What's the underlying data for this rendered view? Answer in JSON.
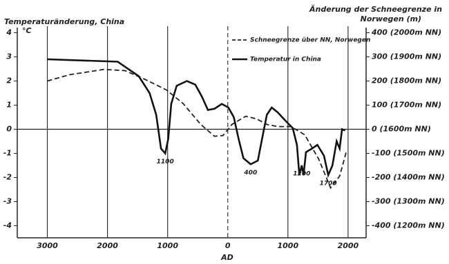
{
  "chart_data": {
    "type": "line",
    "title": "Temperaturänderung, China",
    "y_unit": "°C",
    "y2label": [
      "Änderung der Schneegrenze in",
      "Norwegen (m)"
    ],
    "xlabel": "AD",
    "xlim": [
      -3500,
      2300
    ],
    "xticks": [
      {
        "value": -3000,
        "label": "3000"
      },
      {
        "value": -2000,
        "label": "2000"
      },
      {
        "value": -1000,
        "label": "1000"
      },
      0,
      1000,
      2000
    ],
    "ylim": [
      -4.5,
      4.5
    ],
    "yticks": [
      -4,
      -3,
      -2,
      -1,
      0,
      1,
      2,
      3,
      4
    ],
    "y2lim": [
      -450,
      450
    ],
    "y2ticks": [
      {
        "value": 400,
        "label": "400 (2000m NN)"
      },
      {
        "value": 300,
        "label": "300 (1900m NN)"
      },
      {
        "value": 200,
        "label": "200 (1800m NN)"
      },
      {
        "value": 100,
        "label": "100 (1700m NN)"
      },
      {
        "value": 0,
        "label": "0 (1600m NN)"
      },
      {
        "value": -100,
        "label": "-100 (1500m NN)"
      },
      {
        "value": -200,
        "label": "-200 (1400m NN)"
      },
      {
        "value": -300,
        "label": "-300 (1300m NN)"
      },
      {
        "value": -400,
        "label": "-400 (1200m NN)"
      }
    ],
    "series": [
      {
        "name": "Schneegrenze über NN, Norwegen",
        "color": "#222",
        "dash": true,
        "axis": "y2",
        "x": [
          -3000,
          -2630,
          -2060,
          -1710,
          -1370,
          -1020,
          -740,
          -450,
          -220,
          -80,
          70,
          300,
          480,
          650,
          830,
          1050,
          1280,
          1510,
          1710,
          1860,
          1970
        ],
        "values": [
          200,
          226,
          248,
          243,
          206,
          163,
          106,
          20,
          -29,
          -26,
          20,
          54,
          43,
          20,
          11,
          11,
          -23,
          -123,
          -243,
          -194,
          -94
        ]
      },
      {
        "name": "Temperatur in China",
        "color": "#111",
        "dash": false,
        "x": [
          -3000,
          -1830,
          -1480,
          -1300,
          -1190,
          -1110,
          -1040,
          -990,
          -940,
          -850,
          -680,
          -540,
          -430,
          -330,
          -220,
          -100,
          10,
          100,
          180,
          260,
          380,
          500,
          570,
          650,
          730,
          830,
          960,
          1080,
          1150,
          1190,
          1230,
          1260,
          1300,
          1400,
          1490,
          1600,
          1670,
          1740,
          1810,
          1860,
          1900,
          1950
        ],
        "values": [
          2.9,
          2.8,
          2.2,
          1.5,
          0.6,
          -0.8,
          -1.0,
          -0.4,
          1.05,
          1.8,
          2.0,
          1.85,
          1.35,
          0.8,
          0.85,
          1.05,
          0.9,
          0.5,
          -0.4,
          -1.2,
          -1.45,
          -1.3,
          -0.4,
          0.6,
          0.9,
          0.7,
          0.35,
          0.05,
          -0.65,
          -1.9,
          -1.5,
          -1.9,
          -0.95,
          -0.8,
          -0.65,
          -1.1,
          -1.9,
          -1.5,
          -0.5,
          -0.8,
          0.0,
          -0.05
        ]
      }
    ],
    "annotations": [
      {
        "text": "1100",
        "x": -1040
      },
      {
        "text": "400",
        "x": 380
      },
      {
        "text": "1200",
        "x": 1230
      },
      {
        "text": "1700",
        "x": 1670
      }
    ]
  }
}
